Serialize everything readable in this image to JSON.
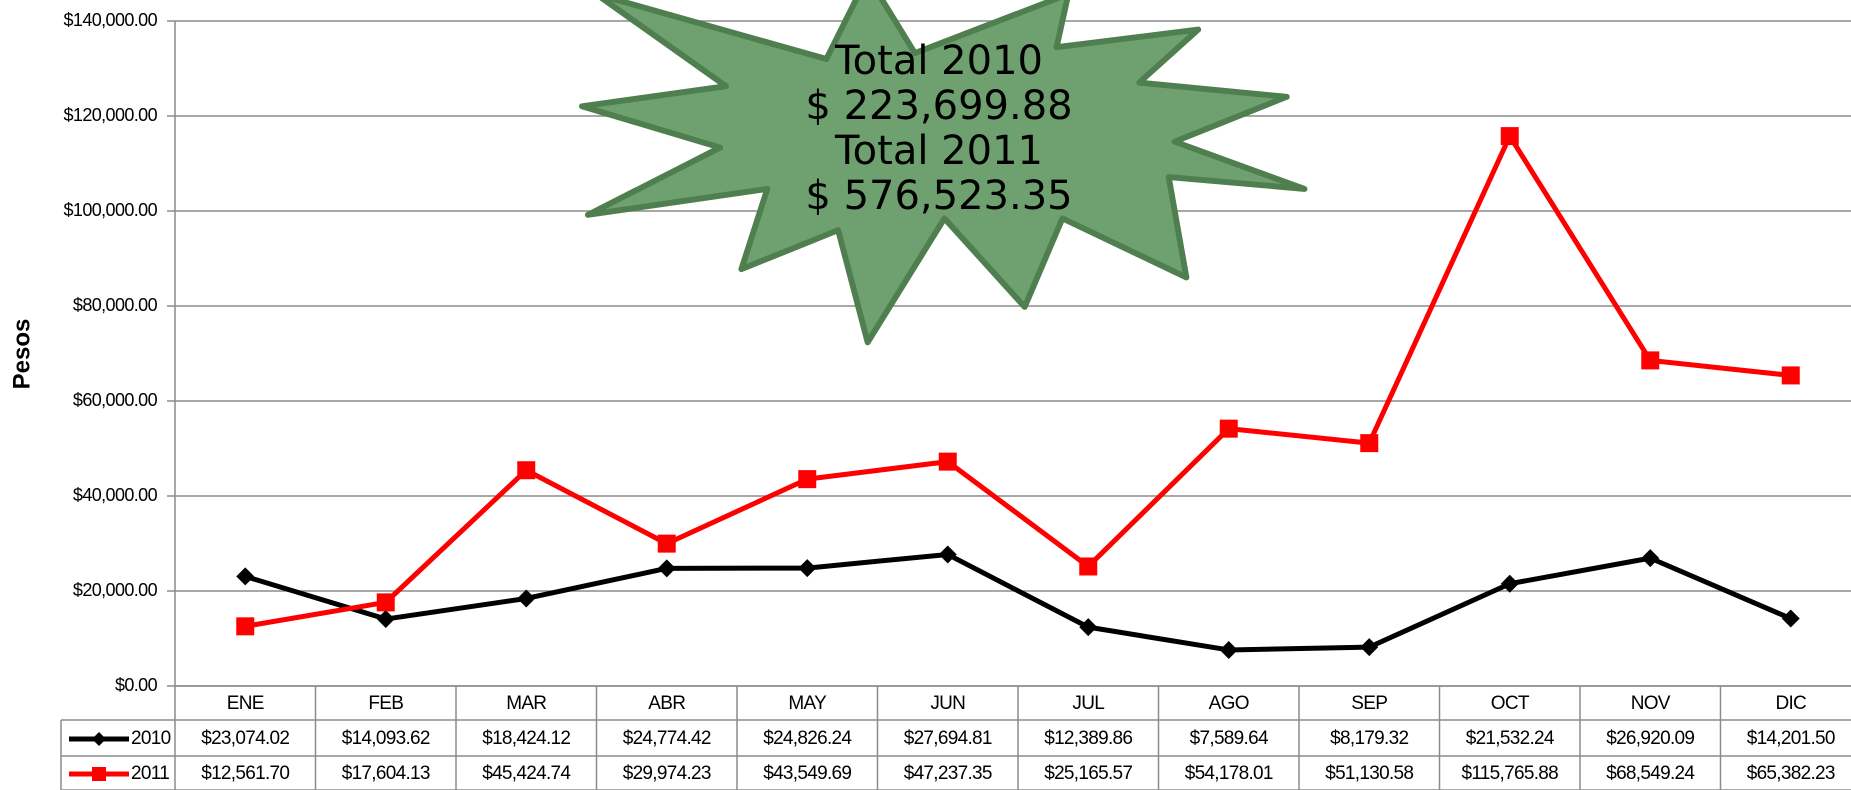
{
  "chart_data": {
    "type": "line",
    "y_label": "Pesos",
    "annotation": [
      "Total 2010",
      "$ 223,699.88",
      "Total 2011",
      "$ 576,523.35"
    ],
    "categories": [
      "ENE",
      "FEB",
      "MAR",
      "ABR",
      "MAY",
      "JUN",
      "JUL",
      "AGO",
      "SEP",
      "OCT",
      "NOV",
      "DIC"
    ],
    "series": [
      {
        "name": "2010",
        "color": "#000000",
        "marker": "diamond",
        "values": [
          23074.02,
          14093.62,
          18424.12,
          24774.42,
          24826.24,
          27694.81,
          12389.86,
          7589.64,
          8179.32,
          21532.24,
          26920.09,
          14201.5
        ],
        "value_labels": [
          "$23,074.02",
          "$14,093.62",
          "$18,424.12",
          "$24,774.42",
          "$24,826.24",
          "$27,694.81",
          "$12,389.86",
          "$7,589.64",
          "$8,179.32",
          "$21,532.24",
          "$26,920.09",
          "$14,201.50"
        ]
      },
      {
        "name": "2011",
        "color": "#ff0000",
        "marker": "square",
        "values": [
          12561.7,
          17604.13,
          45424.74,
          29974.23,
          43549.69,
          47237.35,
          25165.57,
          54178.01,
          51130.58,
          115765.88,
          68549.24,
          65382.23
        ],
        "value_labels": [
          "$12,561.70",
          "$17,604.13",
          "$45,424.74",
          "$29,974.23",
          "$43,549.69",
          "$47,237.35",
          "$25,165.57",
          "$54,178.01",
          "$51,130.58",
          "$115,765.88",
          "$68,549.24",
          "$65,382.23"
        ]
      }
    ],
    "ylim": [
      0,
      140000
    ],
    "yticks": [
      {
        "value": 0,
        "label": "$0.00"
      },
      {
        "value": 20000,
        "label": "$20,000.00"
      },
      {
        "value": 40000,
        "label": "$40,000.00"
      },
      {
        "value": 60000,
        "label": "$60,000.00"
      },
      {
        "value": 80000,
        "label": "$80,000.00"
      },
      {
        "value": 100000,
        "label": "$100,000.00"
      },
      {
        "value": 120000,
        "label": "$120,000.00"
      },
      {
        "value": 140000,
        "label": "$140,000.00"
      }
    ],
    "grid": true
  }
}
